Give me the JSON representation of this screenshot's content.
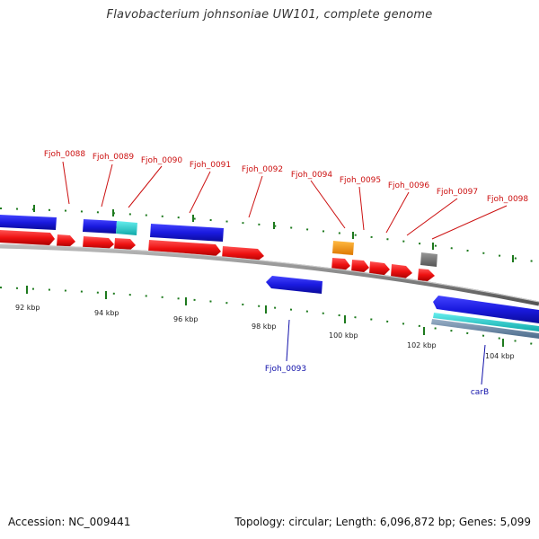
{
  "title": "Flavobacterium johnsoniae UW101, complete genome",
  "footer": {
    "accession": "Accession: NC_009441",
    "summary": "Topology: circular; Length: 6,096,872 bp; Genes: 5,099"
  },
  "colors": {
    "forward_cds": "#ee1111",
    "reverse_cds": "#1a1adf",
    "cyan_feature": "#22cccc",
    "orange_feature": "#ff9900",
    "gray_feature": "#777777",
    "backbone": "#888888",
    "tick": "#1e7a1e",
    "label_red": "#cc1111",
    "label_blue": "#1111aa"
  },
  "scale_labels": [
    "92 kbp",
    "94 kbp",
    "96 kbp",
    "98 kbp",
    "100 kbp",
    "102 kbp",
    "104 kbp"
  ],
  "gene_labels_top": [
    "Fjoh_0088",
    "Fjoh_0089",
    "Fjoh_0090",
    "Fjoh_0091",
    "Fjoh_0092",
    "Fjoh_0094",
    "Fjoh_0095",
    "Fjoh_0096",
    "Fjoh_0097",
    "Fjoh_0098"
  ],
  "gene_labels_bottom": [
    "Fjoh_0093",
    "carB"
  ]
}
